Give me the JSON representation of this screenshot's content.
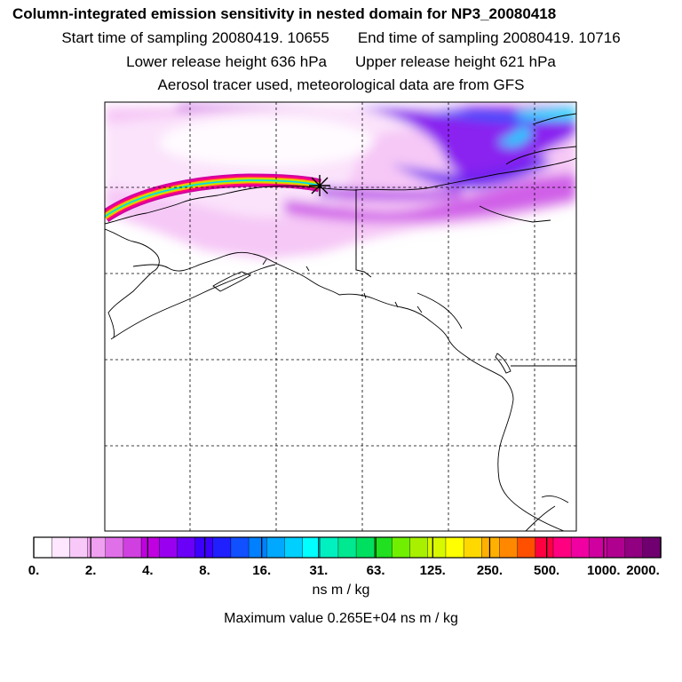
{
  "header": {
    "title": "Column-integrated emission sensitivity in nested domain for NP3_20080418",
    "start_label": "Start time of sampling 20080419. 10655",
    "end_label": "End time of sampling 20080419. 10716",
    "lower_label": "Lower release height  636 hPa",
    "upper_label": "Upper release height  621 hPa",
    "tracer_label": "Aerosol tracer used, meteorological data are from GFS"
  },
  "colorbar": {
    "tick_labels": [
      "0.",
      "2.",
      "4.",
      "8.",
      "16.",
      "31.",
      "63.",
      "125.",
      "250.",
      "500.",
      "1000.",
      "2000."
    ],
    "colors": [
      "#ffffff",
      "#ffe8ff",
      "#f8c8f8",
      "#f0a0f0",
      "#e070e8",
      "#d040e0",
      "#c000e0",
      "#9a00f0",
      "#6a00f8",
      "#3c00ff",
      "#2020ff",
      "#1050ff",
      "#0080ff",
      "#00a8ff",
      "#00d0ff",
      "#00ffff",
      "#00f0c0",
      "#00e890",
      "#00e060",
      "#20e020",
      "#70f000",
      "#a8f000",
      "#d8f800",
      "#ffff00",
      "#ffd800",
      "#ffb000",
      "#ff8800",
      "#ff5000",
      "#ff0040",
      "#ff0080",
      "#f000a0",
      "#d000a0",
      "#b00090",
      "#900080",
      "#700070"
    ],
    "units": "ns m / kg",
    "max_label": "Maximum value  0.265E+04 ns m / kg"
  },
  "map": {
    "release_marker": "asterisk",
    "gridlines": "dashed"
  }
}
